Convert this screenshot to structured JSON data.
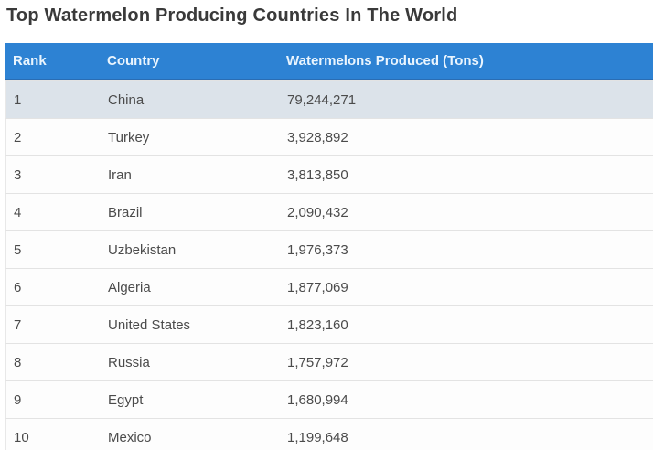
{
  "page": {
    "title": "Top Watermelon Producing Countries In The World"
  },
  "table": {
    "columns": [
      "Rank",
      "Country",
      "Watermelons Produced (Tons)"
    ],
    "rows": [
      {
        "rank": "1",
        "country": "China",
        "produced": "79,244,271"
      },
      {
        "rank": "2",
        "country": "Turkey",
        "produced": "3,928,892"
      },
      {
        "rank": "3",
        "country": "Iran",
        "produced": "3,813,850"
      },
      {
        "rank": "4",
        "country": "Brazil",
        "produced": "2,090,432"
      },
      {
        "rank": "5",
        "country": "Uzbekistan",
        "produced": "1,976,373"
      },
      {
        "rank": "6",
        "country": "Algeria",
        "produced": "1,877,069"
      },
      {
        "rank": "7",
        "country": "United States",
        "produced": "1,823,160"
      },
      {
        "rank": "8",
        "country": "Russia",
        "produced": "1,757,972"
      },
      {
        "rank": "9",
        "country": "Egypt",
        "produced": "1,680,994"
      },
      {
        "rank": "10",
        "country": "Mexico",
        "produced": "1,199,648"
      }
    ],
    "highlighted_row_index": 0
  },
  "colors": {
    "header_bg": "#2d82d3",
    "header_text": "#eaf5fe",
    "header_bottom_border": "#2a6db3",
    "highlight_row_bg": "#dce3ea",
    "row_bg": "#fdfdfd",
    "row_text": "#4b4b4b",
    "title_text": "#3a3a3a",
    "row_border": "#e3e3e3",
    "table_bottom_border": "#b9bfc6"
  },
  "chart_data": {
    "type": "table",
    "title": "Top Watermelon Producing Countries In The World",
    "columns": [
      "Rank",
      "Country",
      "Watermelons Produced (Tons)"
    ],
    "categories": [
      "China",
      "Turkey",
      "Iran",
      "Brazil",
      "Uzbekistan",
      "Algeria",
      "United States",
      "Russia",
      "Egypt",
      "Mexico"
    ],
    "values": [
      79244271,
      3928892,
      3813850,
      2090432,
      1976373,
      1877069,
      1823160,
      1757972,
      1680994,
      1199648
    ],
    "xlabel": "Country",
    "ylabel": "Watermelons Produced (Tons)",
    "legend": "off",
    "grid": "off"
  }
}
